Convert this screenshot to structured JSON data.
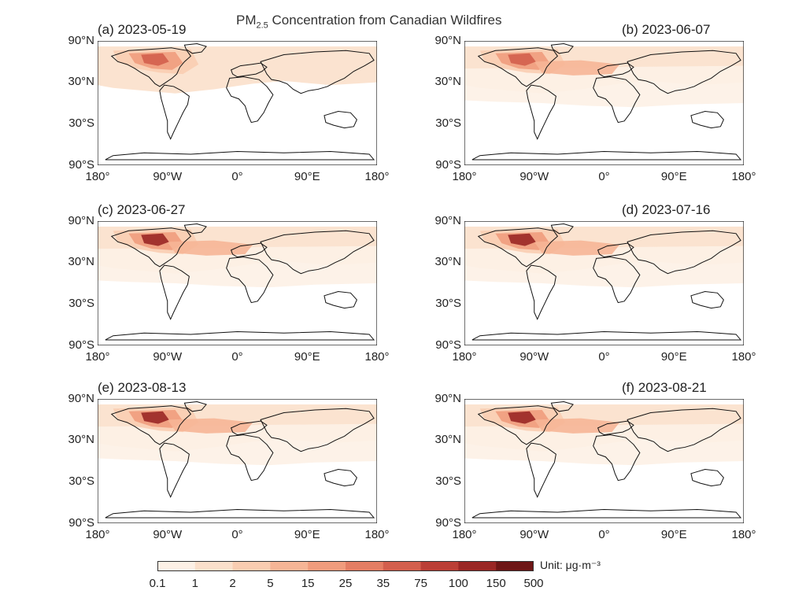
{
  "title": {
    "main": "PM",
    "sub": "2.5",
    "rest": " Concentration from Canadian Wildfires"
  },
  "lat_ticks": [
    "90°N",
    "30°N",
    "30°S",
    "90°S"
  ],
  "lon_ticks": [
    "180°",
    "90°W",
    "0°",
    "90°E",
    "180°"
  ],
  "panels": [
    {
      "label": "(a) 2023-05-19",
      "intensity": 0.35
    },
    {
      "label": "(b) 2023-06-07",
      "intensity": 0.6
    },
    {
      "label": "(c) 2023-06-27",
      "intensity": 0.85
    },
    {
      "label": "(d) 2023-07-16",
      "intensity": 0.9
    },
    {
      "label": "(e) 2023-08-13",
      "intensity": 0.95
    },
    {
      "label": "(f) 2023-08-21",
      "intensity": 0.9
    }
  ],
  "colorbar": {
    "unit": "Unit: μg·m⁻³",
    "ticks": [
      "0.1",
      "1",
      "2",
      "5",
      "15",
      "25",
      "35",
      "75",
      "100",
      "150",
      "500"
    ],
    "colors": [
      "#fdf1e6",
      "#fbe0cb",
      "#f9cdb1",
      "#f6b596",
      "#f09c7d",
      "#e47e64",
      "#d35f4d",
      "#bb3f36",
      "#9a2725",
      "#6e1616"
    ]
  },
  "colors": {
    "land_outline": "#111111",
    "frame": "#111111"
  }
}
